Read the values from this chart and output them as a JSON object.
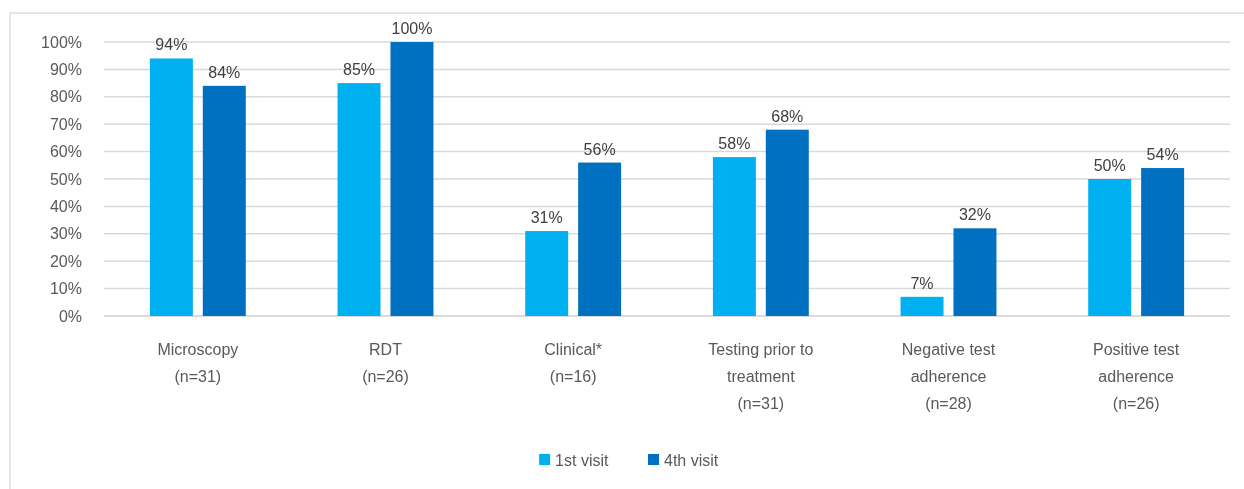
{
  "chart_data": {
    "type": "bar",
    "categories": [
      "Microscopy\n(n=31)",
      "RDT\n(n=26)",
      "Clinical*\n(n=16)",
      "Testing prior to\ntreatment\n(n=31)",
      "Negative test\nadherence\n(n=28)",
      "Positive test\nadherence\n(n=26)"
    ],
    "series": [
      {
        "name": "1st visit",
        "color": "#00b0f0",
        "values": [
          94,
          85,
          31,
          58,
          7,
          50
        ],
        "value_labels": [
          "94%",
          "85%",
          "31%",
          "58%",
          "7%",
          "50%"
        ]
      },
      {
        "name": "4th visit",
        "color": "#0070c0",
        "values": [
          84,
          100,
          56,
          68,
          32,
          54
        ],
        "value_labels": [
          "84%",
          "100%",
          "56%",
          "68%",
          "32%",
          "54%"
        ]
      }
    ],
    "ylim": [
      0,
      100
    ],
    "yticks": [
      {
        "value": 0,
        "label": "0%"
      },
      {
        "value": 10,
        "label": "10%"
      },
      {
        "value": 20,
        "label": "20%"
      },
      {
        "value": 30,
        "label": "30%"
      },
      {
        "value": 40,
        "label": "40%"
      },
      {
        "value": 50,
        "label": "50%"
      },
      {
        "value": 60,
        "label": "60%"
      },
      {
        "value": 70,
        "label": "70%"
      },
      {
        "value": 80,
        "label": "80%"
      },
      {
        "value": 90,
        "label": "90%"
      },
      {
        "value": 100,
        "label": "100%"
      }
    ],
    "grid": "y",
    "legend": "bottom"
  }
}
